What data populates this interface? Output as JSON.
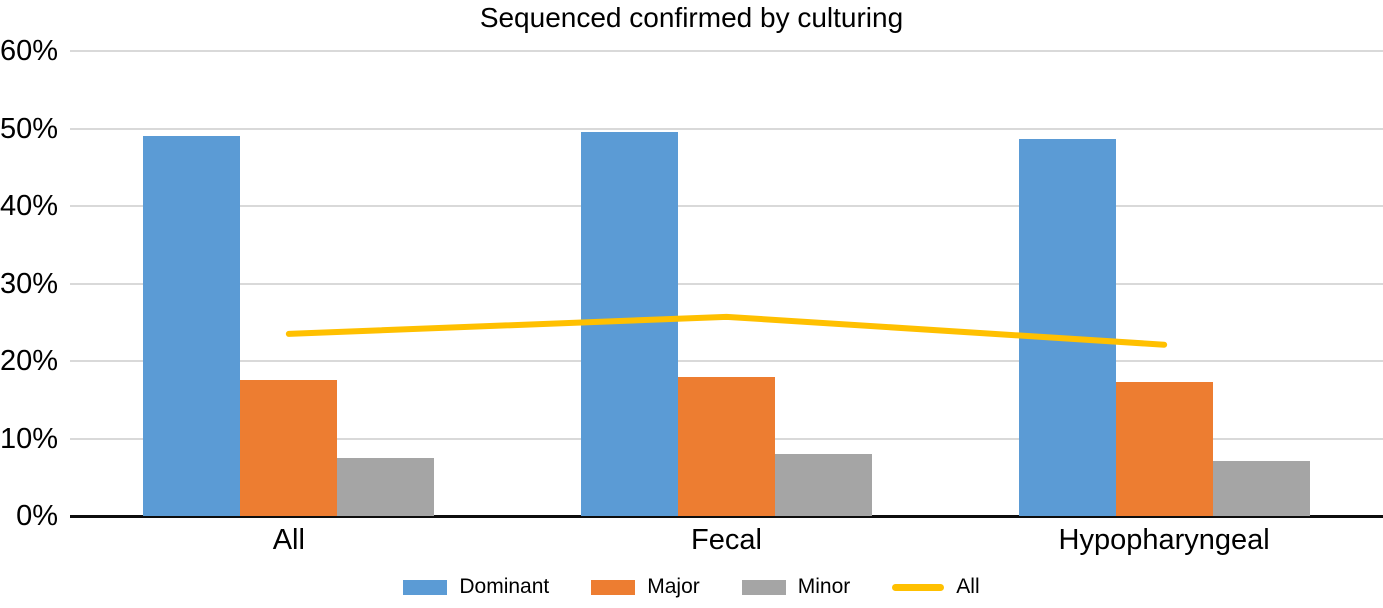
{
  "title": "Sequenced confirmed by culturing",
  "chart_data": {
    "type": "bar",
    "title": "Sequenced confirmed by culturing",
    "categories": [
      "All",
      "Fecal",
      "Hypopharyngeal"
    ],
    "series": [
      {
        "name": "Dominant",
        "type": "bar",
        "color": "#5B9BD5",
        "values": [
          49.0,
          49.5,
          48.6
        ]
      },
      {
        "name": "Major",
        "type": "bar",
        "color": "#ED7D31",
        "values": [
          17.6,
          17.9,
          17.3
        ]
      },
      {
        "name": "Minor",
        "type": "bar",
        "color": "#A5A5A5",
        "values": [
          7.5,
          8.0,
          7.1
        ]
      },
      {
        "name": "All",
        "type": "line",
        "color": "#FFC000",
        "values": [
          23.5,
          25.7,
          22.1
        ]
      }
    ],
    "xlabel": "",
    "ylabel": "",
    "ylim": [
      0,
      60
    ],
    "yticks": [
      {
        "label": "0%",
        "value": 0
      },
      {
        "label": "10%",
        "value": 10
      },
      {
        "label": "20%",
        "value": 20
      },
      {
        "label": "30%",
        "value": 30
      },
      {
        "label": "40%",
        "value": 40
      },
      {
        "label": "50%",
        "value": 50
      },
      {
        "label": "60%",
        "value": 60
      }
    ],
    "grid": true,
    "legend_position": "bottom",
    "legend": [
      "Dominant",
      "Major",
      "Minor",
      "All"
    ]
  },
  "colors": {
    "background": "#FFFFFF",
    "gridline": "#D9D9D9",
    "axis_line": "#0D0D0D",
    "text": "#000000"
  }
}
